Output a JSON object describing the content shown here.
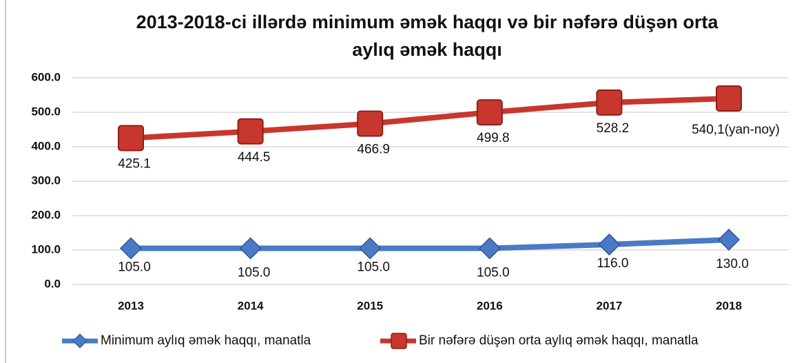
{
  "chart_data": {
    "type": "line",
    "title": "2013-2018-ci illərdə minimum əmək haqqı və bir nəfərə düşən orta aylıq əmək haqqı",
    "categories": [
      "2013",
      "2014",
      "2015",
      "2016",
      "2017",
      "2018"
    ],
    "series": [
      {
        "name": "Minimum aylıq əmək haqqı, manatla",
        "color": "#4a7ac4",
        "marker": "diamond",
        "values": [
          105,
          105,
          105,
          105,
          116,
          130
        ],
        "value_labels": [
          "105.0",
          "105.0",
          "105.0",
          "105.0",
          "116.0",
          "130.0"
        ]
      },
      {
        "name": "Bir nəfərə düşən orta aylıq əmək haqqı, manatla",
        "color": "#c8372d",
        "marker": "square",
        "values": [
          425.1,
          444.5,
          466.9,
          499.8,
          528.2,
          540.1
        ],
        "value_labels": [
          "425.1",
          "444.5",
          "466.9",
          "499.8",
          "528.2",
          "540,1(yan-noy)"
        ]
      }
    ],
    "ylim": [
      0,
      600
    ],
    "yticks": [
      {
        "value": 0,
        "label": "0.0"
      },
      {
        "value": 100,
        "label": "100.0"
      },
      {
        "value": 200,
        "label": "200.0"
      },
      {
        "value": 300,
        "label": "300.0"
      },
      {
        "value": 400,
        "label": "400.0"
      },
      {
        "value": 500,
        "label": "500.0"
      },
      {
        "value": 600,
        "label": "600.0"
      }
    ],
    "grid": true,
    "legend": "bottom"
  }
}
